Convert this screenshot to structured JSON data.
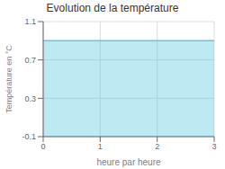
{
  "chart_data": {
    "type": "area",
    "title": "Evolution de la température",
    "xlabel": "heure par heure",
    "ylabel": "Température en °C",
    "x": [
      0,
      3
    ],
    "values": [
      0.9,
      0.9
    ],
    "color": "#5bc8e0",
    "xlim": [
      0,
      3
    ],
    "ylim": [
      -0.1,
      1.1
    ],
    "xticks": [
      0,
      1,
      2,
      3
    ],
    "yticks": [
      -0.1,
      0.3,
      0.7,
      1.1
    ],
    "grid": true
  }
}
